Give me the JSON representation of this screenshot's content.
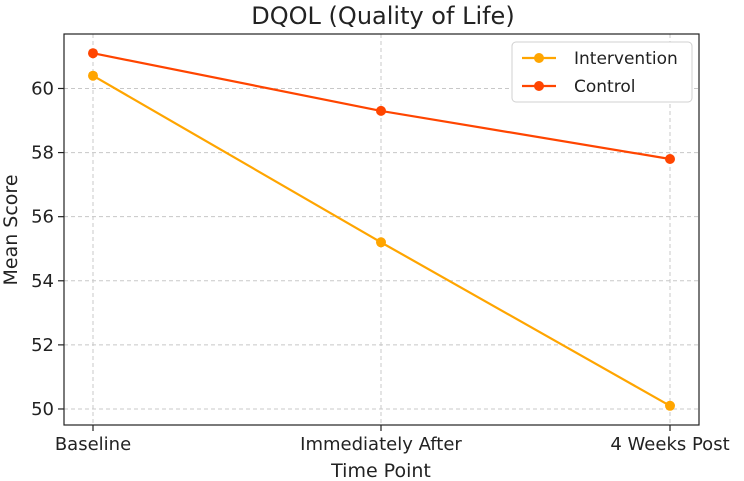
{
  "chart_data": {
    "type": "line",
    "title": "DQOL (Quality of Life)",
    "xlabel": "Time Point",
    "ylabel": "Mean Score",
    "categories": [
      "Baseline",
      "Immediately After",
      "4 Weeks Post"
    ],
    "series": [
      {
        "name": "Intervention",
        "values": [
          60.4,
          55.2,
          50.1
        ],
        "color": "#FFA500"
      },
      {
        "name": "Control",
        "values": [
          61.1,
          59.3,
          57.8
        ],
        "color": "#FF4500"
      }
    ],
    "ylim": [
      49.5,
      61.7
    ],
    "yticks": [
      50,
      52,
      54,
      56,
      58,
      60
    ],
    "grid": true,
    "legend_position": "top-right"
  }
}
